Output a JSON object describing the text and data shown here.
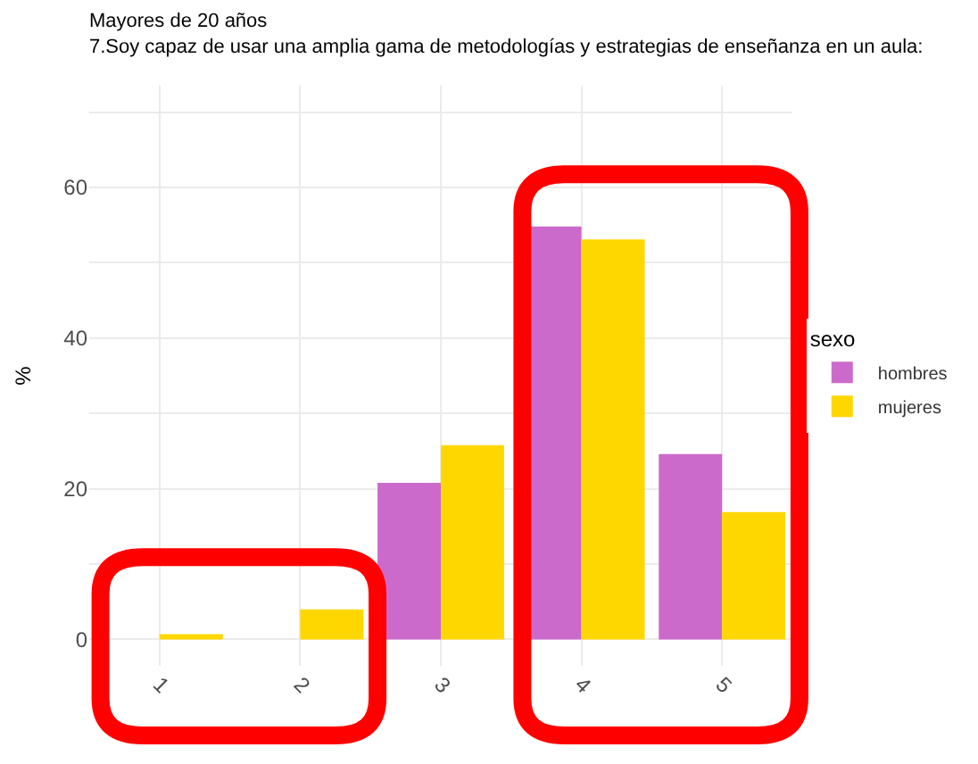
{
  "chart_data": {
    "type": "bar",
    "title": "Mayores de 20 años",
    "subtitle": "7.Soy capaz de usar una amplia gama de metodologías y estrategias de enseñanza en un aula:",
    "ylabel": "%",
    "legend_title": "sexo",
    "categories": [
      "1",
      "2",
      "3",
      "4",
      "5"
    ],
    "series": [
      {
        "name": "hombres",
        "color": "#cc6acb",
        "values": [
          0,
          0,
          20.8,
          54.8,
          24.6
        ]
      },
      {
        "name": "mujeres",
        "color": "#ffd700",
        "values": [
          0.7,
          4.0,
          25.8,
          53.1,
          16.9
        ]
      }
    ],
    "ylim": [
      -3.5,
      73.5
    ],
    "yticks": [
      0,
      {
        "value": 10,
        "label": null
      },
      20,
      {
        "value": 30,
        "label": null
      },
      40,
      {
        "value": 50,
        "label": null
      },
      60,
      {
        "value": 70,
        "label": null
      }
    ],
    "grid": true,
    "legend": "right"
  }
}
